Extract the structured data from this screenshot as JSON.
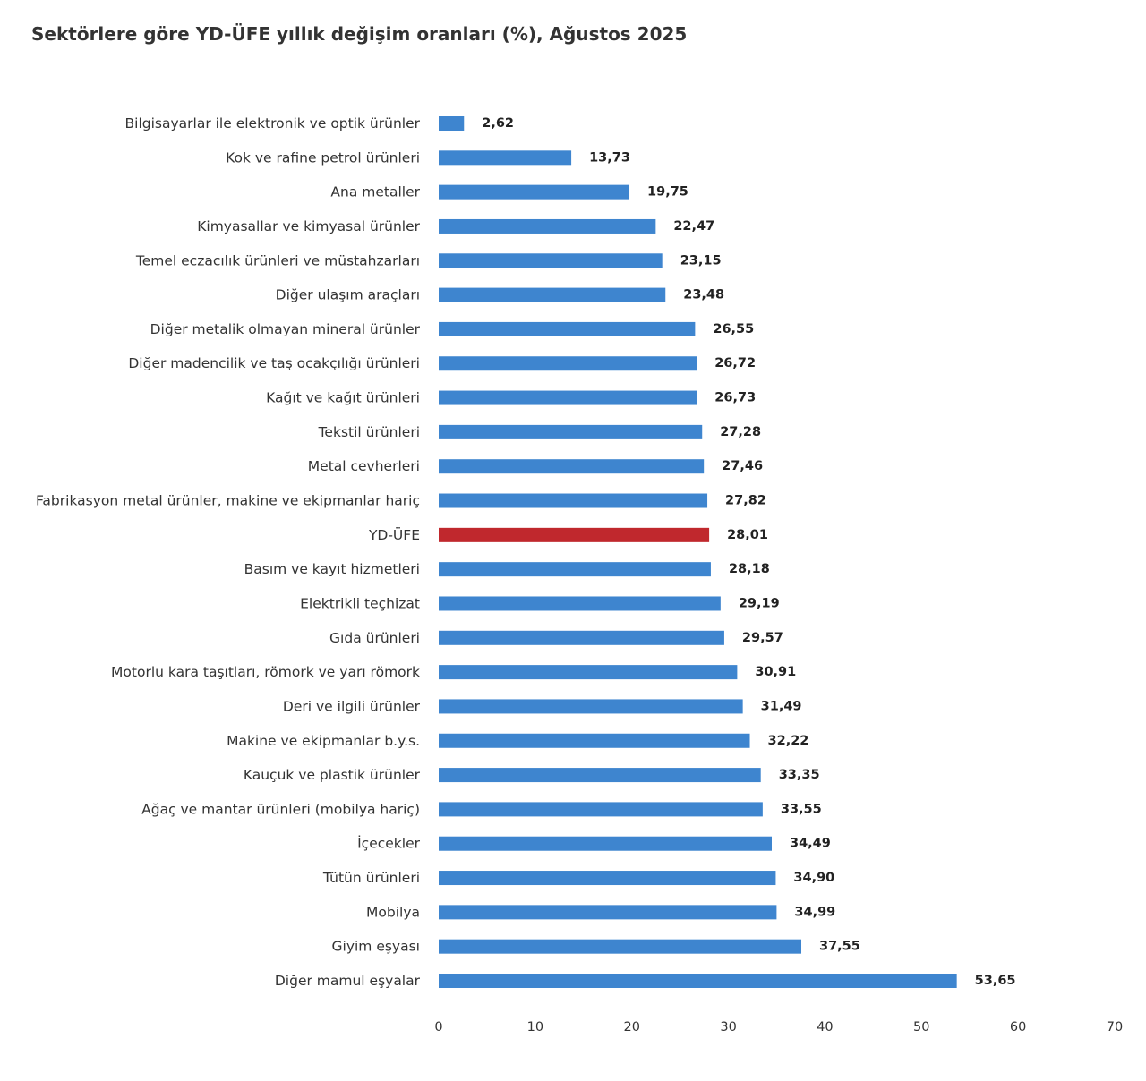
{
  "chart_data": {
    "type": "bar",
    "orientation": "horizontal",
    "title": "Sektörlere göre YD-ÜFE yıllık değişim oranları (%), Ağustos 2025",
    "categories": [
      "Bilgisayarlar ile elektronik ve optik ürünler",
      "Kok ve rafine petrol ürünleri",
      "Ana metaller",
      "Kimyasallar ve kimyasal ürünler",
      "Temel eczacılık ürünleri ve müstahzarları",
      "Diğer ulaşım araçları",
      "Diğer metalik olmayan mineral ürünler",
      "Diğer madencilik ve taş ocakçılığı ürünleri",
      "Kağıt ve kağıt ürünleri",
      "Tekstil ürünleri",
      "Metal cevherleri",
      "Fabrikasyon metal ürünler, makine ve ekipmanlar hariç",
      "YD-ÜFE",
      "Basım ve kayıt hizmetleri",
      "Elektrikli teçhizat",
      "Gıda ürünleri",
      "Motorlu kara taşıtları, römork ve yarı römork",
      "Deri ve ilgili ürünler",
      "Makine ve ekipmanlar b.y.s.",
      "Kauçuk ve plastik ürünler",
      "Ağaç ve mantar ürünleri (mobilya hariç)",
      "İçecekler",
      "Tütün ürünleri",
      "Mobilya",
      "Giyim eşyası",
      "Diğer mamul eşyalar"
    ],
    "values": [
      2.62,
      13.73,
      19.75,
      22.47,
      23.15,
      23.48,
      26.55,
      26.72,
      26.73,
      27.28,
      27.46,
      27.82,
      28.01,
      28.18,
      29.19,
      29.57,
      30.91,
      31.49,
      32.22,
      33.35,
      33.55,
      34.49,
      34.9,
      34.99,
      37.55,
      53.65
    ],
    "value_labels": [
      "2,62",
      "13,73",
      "19,75",
      "22,47",
      "23,15",
      "23,48",
      "26,55",
      "26,72",
      "26,73",
      "27,28",
      "27,46",
      "27,82",
      "28,01",
      "28,18",
      "29,19",
      "29,57",
      "30,91",
      "31,49",
      "32,22",
      "33,35",
      "33,55",
      "34,49",
      "34,90",
      "34,99",
      "37,55",
      "53,65"
    ],
    "highlight_category": "YD-ÜFE",
    "colors": {
      "bar": "#3e85cf",
      "highlight": "#c0282d"
    },
    "xlim": [
      0,
      70
    ],
    "x_ticks": [
      0,
      10,
      20,
      30,
      40,
      50,
      60,
      70
    ],
    "xlabel": "",
    "ylabel": "",
    "grid": false,
    "legend": "none"
  }
}
